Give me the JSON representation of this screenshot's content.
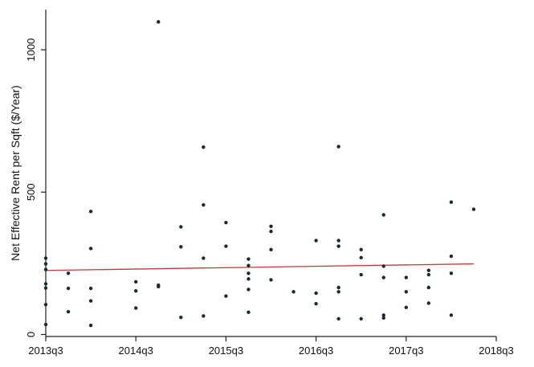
{
  "chart_data": {
    "type": "scatter",
    "title": "",
    "xlabel": "",
    "ylabel": "Net Effective Rent per Sqft ($/Year)",
    "xlim": [
      2013.5,
      2018.5
    ],
    "ylim": [
      0,
      1100
    ],
    "grid": false,
    "x_ticks": [
      {
        "x": 2013.5,
        "label": "2013q3"
      },
      {
        "x": 2014.5,
        "label": "2014q3"
      },
      {
        "x": 2015.5,
        "label": "2015q3"
      },
      {
        "x": 2016.5,
        "label": "2016q3"
      },
      {
        "x": 2017.5,
        "label": "2017q3"
      },
      {
        "x": 2018.5,
        "label": "2018q3"
      }
    ],
    "y_ticks": [
      {
        "y": 0,
        "label": "0"
      },
      {
        "y": 500,
        "label": "500"
      },
      {
        "y": 1000,
        "label": "1000"
      }
    ],
    "marker_color": "#1a2a33",
    "fit_line_color": "#c0393b",
    "series": [
      {
        "values": [
          {
            "x": 2013.5,
            "y": 268
          },
          {
            "x": 2013.5,
            "y": 248
          },
          {
            "x": 2013.5,
            "y": 228
          },
          {
            "x": 2013.5,
            "y": 178
          },
          {
            "x": 2013.5,
            "y": 163
          },
          {
            "x": 2013.5,
            "y": 105
          },
          {
            "x": 2013.5,
            "y": 35
          },
          {
            "x": 2013.75,
            "y": 215
          },
          {
            "x": 2013.75,
            "y": 162
          },
          {
            "x": 2013.75,
            "y": 80
          },
          {
            "x": 2014.0,
            "y": 432
          },
          {
            "x": 2014.0,
            "y": 302
          },
          {
            "x": 2014.0,
            "y": 162
          },
          {
            "x": 2014.0,
            "y": 118
          },
          {
            "x": 2014.0,
            "y": 32
          },
          {
            "x": 2014.5,
            "y": 185
          },
          {
            "x": 2014.5,
            "y": 153
          },
          {
            "x": 2014.5,
            "y": 93
          },
          {
            "x": 2014.75,
            "y": 1098
          },
          {
            "x": 2014.75,
            "y": 173
          },
          {
            "x": 2014.75,
            "y": 168
          },
          {
            "x": 2015.0,
            "y": 378
          },
          {
            "x": 2015.0,
            "y": 308
          },
          {
            "x": 2015.0,
            "y": 60
          },
          {
            "x": 2015.25,
            "y": 658
          },
          {
            "x": 2015.25,
            "y": 455
          },
          {
            "x": 2015.25,
            "y": 268
          },
          {
            "x": 2015.25,
            "y": 65
          },
          {
            "x": 2015.5,
            "y": 393
          },
          {
            "x": 2015.5,
            "y": 310
          },
          {
            "x": 2015.5,
            "y": 135
          },
          {
            "x": 2015.75,
            "y": 265
          },
          {
            "x": 2015.75,
            "y": 242
          },
          {
            "x": 2015.75,
            "y": 215
          },
          {
            "x": 2015.75,
            "y": 195
          },
          {
            "x": 2015.75,
            "y": 158
          },
          {
            "x": 2015.75,
            "y": 78
          },
          {
            "x": 2016.0,
            "y": 380
          },
          {
            "x": 2016.0,
            "y": 362
          },
          {
            "x": 2016.0,
            "y": 298
          },
          {
            "x": 2016.0,
            "y": 192
          },
          {
            "x": 2016.25,
            "y": 150
          },
          {
            "x": 2016.5,
            "y": 330
          },
          {
            "x": 2016.5,
            "y": 145
          },
          {
            "x": 2016.5,
            "y": 108
          },
          {
            "x": 2016.75,
            "y": 660
          },
          {
            "x": 2016.75,
            "y": 330
          },
          {
            "x": 2016.75,
            "y": 310
          },
          {
            "x": 2016.75,
            "y": 165
          },
          {
            "x": 2016.75,
            "y": 150
          },
          {
            "x": 2016.75,
            "y": 55
          },
          {
            "x": 2017.0,
            "y": 298
          },
          {
            "x": 2017.0,
            "y": 270
          },
          {
            "x": 2017.0,
            "y": 210
          },
          {
            "x": 2017.0,
            "y": 55
          },
          {
            "x": 2017.25,
            "y": 420
          },
          {
            "x": 2017.25,
            "y": 240
          },
          {
            "x": 2017.25,
            "y": 200
          },
          {
            "x": 2017.25,
            "y": 68
          },
          {
            "x": 2017.25,
            "y": 58
          },
          {
            "x": 2017.5,
            "y": 200
          },
          {
            "x": 2017.5,
            "y": 150
          },
          {
            "x": 2017.5,
            "y": 95
          },
          {
            "x": 2017.75,
            "y": 225
          },
          {
            "x": 2017.75,
            "y": 210
          },
          {
            "x": 2017.75,
            "y": 165
          },
          {
            "x": 2017.75,
            "y": 110
          },
          {
            "x": 2018.0,
            "y": 465
          },
          {
            "x": 2018.0,
            "y": 275
          },
          {
            "x": 2018.0,
            "y": 215
          },
          {
            "x": 2018.0,
            "y": 68
          },
          {
            "x": 2018.25,
            "y": 440
          }
        ]
      }
    ],
    "fit_line": {
      "x": [
        2013.5,
        2018.25
      ],
      "y": [
        225,
        248
      ]
    }
  }
}
